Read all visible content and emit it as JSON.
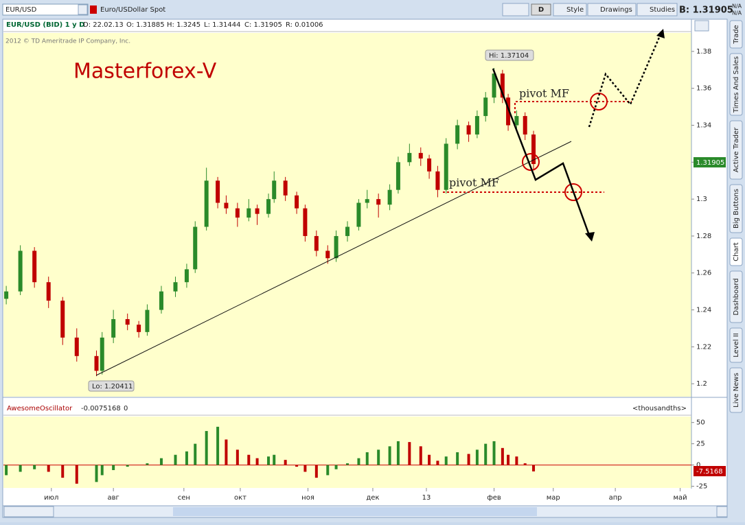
{
  "toolbar": {
    "symbol": "EUR/USD",
    "description": "Euro/USDollar Spot",
    "period": "D",
    "style": "Style",
    "drawings": "Drawings",
    "studies": "Studies",
    "bid": "B: 1.31905",
    "na1": "N/A",
    "na2": "N/A"
  },
  "chart_header": {
    "name": "EUR/USD (BID) 1 y D",
    "date": "D: 22.02.13",
    "open": "O: 1.31885",
    "high": "H: 1.3245",
    "low": "L: 1.31444",
    "close": "C: 1.31905",
    "range": "R: 0.01006"
  },
  "side_tabs": [
    "Trade",
    "Times And Sales",
    "Active Trader",
    "Big Buttons",
    "Chart",
    "Dashboard",
    "Level II",
    "Live News"
  ],
  "chart_data": [
    {
      "type": "candlestick",
      "copyright": "2012 © TD Ameritrade IP Company, Inc.",
      "watermark": "Masterforex-V",
      "pivot_upper": "pivot MF",
      "pivot_lower": "pivot MF",
      "hi_label": "Hi: 1.37104",
      "lo_label": "Lo: 1.20411",
      "last_label": "1.31905",
      "up_color": "#2a8a2a",
      "down_color": "#c00000",
      "x": [
        1,
        6,
        11,
        16,
        21,
        26,
        33,
        35,
        39,
        44,
        48,
        51,
        56,
        61,
        65,
        68,
        72,
        76,
        79,
        83,
        87,
        90,
        94,
        96,
        100,
        104,
        107,
        111,
        115,
        118,
        122,
        126,
        129,
        133,
        137,
        140,
        144,
        148,
        151,
        154,
        157,
        161,
        165,
        168,
        171,
        174,
        177,
        179,
        182,
        185,
        188
      ],
      "open": [
        1.246,
        1.25,
        1.272,
        1.255,
        1.245,
        1.225,
        1.215,
        1.207,
        1.225,
        1.235,
        1.232,
        1.228,
        1.24,
        1.25,
        1.255,
        1.262,
        1.285,
        1.31,
        1.298,
        1.295,
        1.29,
        1.295,
        1.292,
        1.3,
        1.31,
        1.302,
        1.295,
        1.28,
        1.272,
        1.268,
        1.28,
        1.285,
        1.298,
        1.3,
        1.297,
        1.305,
        1.32,
        1.325,
        1.322,
        1.315,
        1.305,
        1.33,
        1.34,
        1.335,
        1.345,
        1.355,
        1.368,
        1.355,
        1.34,
        1.345,
        1.335
      ],
      "high": [
        1.253,
        1.275,
        1.274,
        1.258,
        1.247,
        1.23,
        1.218,
        1.228,
        1.24,
        1.238,
        1.234,
        1.243,
        1.253,
        1.258,
        1.265,
        1.288,
        1.317,
        1.312,
        1.302,
        1.298,
        1.3,
        1.297,
        1.303,
        1.315,
        1.312,
        1.304,
        1.297,
        1.283,
        1.275,
        1.283,
        1.288,
        1.3,
        1.305,
        1.303,
        1.308,
        1.323,
        1.33,
        1.328,
        1.324,
        1.318,
        1.333,
        1.343,
        1.342,
        1.348,
        1.358,
        1.371,
        1.37,
        1.357,
        1.348,
        1.347,
        1.337
      ],
      "low": [
        1.243,
        1.248,
        1.252,
        1.241,
        1.221,
        1.212,
        1.2041,
        1.205,
        1.222,
        1.229,
        1.225,
        1.226,
        1.238,
        1.247,
        1.252,
        1.26,
        1.283,
        1.295,
        1.292,
        1.285,
        1.288,
        1.286,
        1.29,
        1.298,
        1.299,
        1.292,
        1.277,
        1.269,
        1.265,
        1.266,
        1.277,
        1.283,
        1.295,
        1.29,
        1.294,
        1.303,
        1.318,
        1.318,
        1.311,
        1.301,
        1.303,
        1.327,
        1.331,
        1.333,
        1.342,
        1.352,
        1.352,
        1.337,
        1.338,
        1.332,
        1.316
      ],
      "close": [
        1.25,
        1.272,
        1.255,
        1.245,
        1.225,
        1.215,
        1.207,
        1.225,
        1.235,
        1.232,
        1.228,
        1.24,
        1.25,
        1.255,
        1.262,
        1.285,
        1.31,
        1.298,
        1.295,
        1.29,
        1.295,
        1.292,
        1.3,
        1.31,
        1.302,
        1.295,
        1.28,
        1.272,
        1.268,
        1.28,
        1.285,
        1.298,
        1.3,
        1.297,
        1.305,
        1.32,
        1.325,
        1.322,
        1.315,
        1.305,
        1.33,
        1.34,
        1.335,
        1.345,
        1.355,
        1.368,
        1.355,
        1.34,
        1.345,
        1.335,
        1.319
      ],
      "ylim": [
        1.193,
        1.39
      ],
      "yticks": [
        1.2,
        1.22,
        1.24,
        1.26,
        1.28,
        1.3,
        1.32,
        1.34,
        1.36,
        1.38
      ],
      "xlim": [
        0,
        244
      ],
      "xticks": [
        {
          "value": 17,
          "label": "июл"
        },
        {
          "value": 39,
          "label": "авг"
        },
        {
          "value": 64,
          "label": "сен"
        },
        {
          "value": 84,
          "label": "окт"
        },
        {
          "value": 108,
          "label": "ноя"
        },
        {
          "value": 131,
          "label": "дек"
        },
        {
          "value": 150,
          "label": "13"
        },
        {
          "value": 174,
          "label": "фев"
        },
        {
          "value": 195,
          "label": "мар"
        },
        {
          "value": 217,
          "label": "апр"
        },
        {
          "value": 240,
          "label": "май"
        }
      ]
    },
    {
      "type": "bar",
      "name": "AwesomeOscillator",
      "header_value": "-0.0075168",
      "header_param": "0",
      "units": "<thousandths>",
      "last_label": "-7.5168",
      "up_color": "#2a8a2a",
      "down_color": "#c00000",
      "x": [
        1,
        6,
        11,
        16,
        21,
        26,
        33,
        35,
        39,
        44,
        48,
        51,
        56,
        61,
        65,
        68,
        72,
        76,
        79,
        83,
        87,
        90,
        94,
        96,
        100,
        104,
        107,
        111,
        115,
        118,
        122,
        126,
        129,
        133,
        137,
        140,
        144,
        148,
        151,
        154,
        157,
        161,
        165,
        168,
        171,
        174,
        177,
        179,
        182,
        185,
        188
      ],
      "values": [
        -12,
        -8,
        -5,
        -8,
        -15,
        -22,
        -20,
        -12,
        -6,
        -2,
        0,
        2,
        8,
        12,
        16,
        25,
        40,
        45,
        30,
        18,
        12,
        8,
        10,
        12,
        6,
        -2,
        -8,
        -15,
        -12,
        -5,
        2,
        8,
        15,
        18,
        22,
        28,
        27,
        22,
        12,
        5,
        10,
        15,
        13,
        18,
        25,
        28,
        20,
        12,
        10,
        2,
        -7.5168
      ],
      "ylim": [
        -27,
        57
      ],
      "yticks": [
        50,
        25,
        0,
        -25
      ]
    }
  ]
}
